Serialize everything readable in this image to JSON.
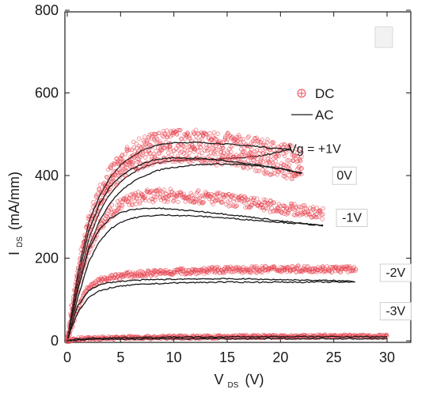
{
  "chart_data": {
    "type": "scatter",
    "x_label_main": "V",
    "x_label_sub": "DS",
    "x_label_unit": "(V)",
    "y_label_main": "I",
    "y_label_sub": "DS",
    "y_label_unit": "(mA/mm)",
    "xlim": [
      0,
      32
    ],
    "ylim": [
      0,
      800
    ],
    "x_ticks": [
      0,
      5,
      10,
      15,
      20,
      25,
      30
    ],
    "y_ticks": [
      0,
      200,
      400,
      600,
      800
    ],
    "x_tick_labels": [
      "0",
      "5",
      "10",
      "15",
      "20",
      "25",
      "30"
    ],
    "y_tick_labels": [
      "0",
      "200",
      "400",
      "600",
      "800"
    ],
    "legend": {
      "position": "top-right",
      "dc_label": "DC",
      "ac_label": "AC"
    },
    "colors": {
      "dc": "#e8434f",
      "ac": "#1a1a1a"
    },
    "annotations": [
      {
        "text": "Vg = +1V",
        "x": 23.2,
        "y": 455,
        "boxed": false
      },
      {
        "text": "0V",
        "x": 26.0,
        "y": 390,
        "boxed": true
      },
      {
        "text": "-1V",
        "x": 26.7,
        "y": 288,
        "boxed": true
      },
      {
        "text": "-2V",
        "x": 30.8,
        "y": 155,
        "boxed": true
      },
      {
        "text": "-3V",
        "x": 30.8,
        "y": 62,
        "boxed": true
      }
    ],
    "series": [
      {
        "gate": "+1V",
        "dc": {
          "x": [
            0.5,
            1,
            1.5,
            2,
            3,
            4,
            5,
            6,
            7,
            8,
            9,
            10,
            11,
            12,
            13,
            14,
            15,
            16,
            17,
            18,
            19,
            20,
            21,
            22
          ],
          "y": [
            95,
            170,
            235,
            290,
            360,
            405,
            435,
            458,
            472,
            482,
            488,
            490,
            490,
            489,
            487,
            485,
            482,
            478,
            474,
            470,
            465,
            460,
            455,
            448
          ]
        },
        "ac_upper": {
          "x": [
            0.3,
            1,
            2,
            3,
            4,
            5,
            6,
            7,
            8,
            9,
            10,
            12,
            14,
            16,
            18,
            19,
            20,
            21
          ],
          "y": [
            55,
            165,
            285,
            350,
            395,
            425,
            445,
            460,
            470,
            476,
            480,
            480,
            478,
            474,
            470,
            467,
            465,
            462
          ]
        },
        "ac_lower": {
          "x": [
            0.3,
            1,
            2,
            3,
            4,
            5,
            6,
            7,
            8,
            9,
            10,
            12,
            14,
            16,
            18,
            19,
            20,
            21
          ],
          "y": [
            45,
            135,
            245,
            310,
            355,
            385,
            405,
            418,
            428,
            433,
            436,
            438,
            440,
            443,
            447,
            452,
            458,
            465
          ]
        }
      },
      {
        "gate": "0V",
        "dc": {
          "x": [
            0.5,
            1,
            1.5,
            2,
            3,
            4,
            5,
            6,
            7,
            8,
            9,
            10,
            11,
            12,
            13,
            14,
            15,
            16,
            17,
            18,
            19,
            20,
            21,
            22
          ],
          "y": [
            85,
            155,
            215,
            265,
            330,
            375,
            405,
            425,
            438,
            446,
            450,
            452,
            452,
            450,
            448,
            445,
            442,
            438,
            432,
            426,
            420,
            415,
            410,
            405
          ]
        },
        "ac_upper": {
          "x": [
            0.3,
            1,
            2,
            3,
            4,
            5,
            6,
            7,
            8,
            9,
            10,
            12,
            14,
            16,
            18,
            20,
            21,
            22
          ],
          "y": [
            50,
            150,
            265,
            330,
            372,
            398,
            415,
            428,
            437,
            441,
            443,
            442,
            438,
            432,
            425,
            417,
            412,
            406
          ]
        },
        "ac_lower": {
          "x": [
            0.3,
            1,
            2,
            3,
            4,
            5,
            6,
            7,
            8,
            9,
            10,
            12,
            14,
            16,
            18,
            20,
            21,
            22
          ],
          "y": [
            40,
            125,
            225,
            290,
            333,
            362,
            382,
            397,
            408,
            416,
            420,
            426,
            428,
            427,
            423,
            416,
            411,
            405
          ]
        }
      },
      {
        "gate": "-1V",
        "dc": {
          "x": [
            0.5,
            1,
            1.5,
            2,
            3,
            4,
            5,
            6,
            7,
            8,
            9,
            10,
            11,
            12,
            14,
            16,
            18,
            20,
            22,
            24
          ],
          "y": [
            70,
            130,
            180,
            220,
            275,
            310,
            330,
            342,
            348,
            351,
            352,
            352,
            351,
            349,
            344,
            338,
            330,
            322,
            315,
            308
          ]
        },
        "ac_upper": {
          "x": [
            0.3,
            1,
            2,
            3,
            4,
            5,
            6,
            7,
            8,
            9,
            10,
            12,
            14,
            16,
            18,
            20,
            22,
            24
          ],
          "y": [
            45,
            125,
            220,
            270,
            296,
            310,
            317,
            320,
            321,
            320,
            318,
            314,
            309,
            303,
            297,
            290,
            284,
            279
          ]
        },
        "ac_lower": {
          "x": [
            0.3,
            1,
            2,
            3,
            4,
            5,
            6,
            7,
            8,
            9,
            10,
            12,
            14,
            16,
            18,
            20,
            22,
            24
          ],
          "y": [
            35,
            105,
            190,
            240,
            270,
            287,
            296,
            301,
            303,
            304,
            304,
            302,
            299,
            295,
            291,
            287,
            283,
            279
          ]
        }
      },
      {
        "gate": "-2V",
        "dc": {
          "x": [
            0.5,
            1,
            1.5,
            2,
            3,
            4,
            5,
            6,
            7,
            8,
            10,
            12,
            14,
            16,
            18,
            20,
            22,
            24,
            26,
            27
          ],
          "y": [
            40,
            80,
            110,
            128,
            145,
            152,
            157,
            160,
            162,
            164,
            167,
            169,
            171,
            172,
            173,
            174,
            174,
            174,
            173,
            173
          ]
        },
        "ac_upper": {
          "x": [
            0.3,
            1,
            2,
            3,
            4,
            5,
            6,
            8,
            10,
            12,
            14,
            16,
            18,
            20,
            22,
            24,
            26,
            27
          ],
          "y": [
            30,
            85,
            122,
            135,
            141,
            144,
            146,
            148,
            149,
            150,
            150,
            150,
            149,
            148,
            147,
            146,
            145,
            144
          ]
        },
        "ac_lower": {
          "x": [
            0.3,
            1,
            2,
            3,
            4,
            5,
            6,
            8,
            10,
            12,
            14,
            16,
            18,
            20,
            22,
            24,
            26,
            27
          ],
          "y": [
            25,
            70,
            105,
            120,
            128,
            132,
            135,
            138,
            140,
            141,
            142,
            142,
            142,
            142,
            142,
            142,
            142,
            142
          ]
        }
      },
      {
        "gate": "-3V",
        "dc": {
          "x": [
            0.5,
            1,
            2,
            3,
            4,
            6,
            8,
            10,
            12,
            14,
            16,
            18,
            20,
            22,
            24,
            26,
            28,
            30
          ],
          "y": [
            3,
            4,
            5,
            6,
            7,
            8,
            8,
            9,
            9,
            9,
            10,
            10,
            10,
            10,
            11,
            11,
            11,
            11
          ]
        },
        "ac_upper": {
          "x": [
            0.3,
            1,
            2,
            4,
            6,
            8,
            10,
            14,
            18,
            22,
            26,
            30
          ],
          "y": [
            2,
            4,
            6,
            7,
            8,
            8,
            9,
            9,
            10,
            10,
            10,
            10
          ]
        },
        "ac_lower": {
          "x": [
            0.3,
            1,
            2,
            4,
            6,
            8,
            10,
            14,
            18,
            22,
            26,
            30
          ],
          "y": [
            1,
            2,
            3,
            4,
            4,
            5,
            5,
            5,
            5,
            5,
            5,
            5
          ]
        }
      }
    ]
  }
}
